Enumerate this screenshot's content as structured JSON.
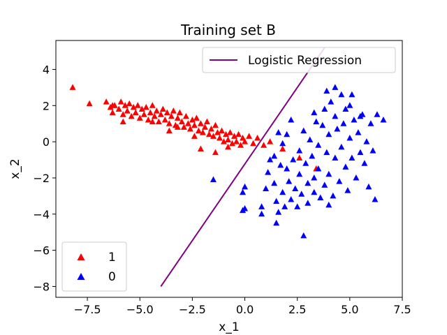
{
  "chart_data": {
    "type": "scatter",
    "title": "Training set B",
    "xlabel": "x_1",
    "ylabel": "x_2",
    "xlim": [
      -9.0,
      7.5
    ],
    "ylim": [
      -8.6,
      5.6
    ],
    "xticks": [
      -7.5,
      -5.0,
      -2.5,
      0.0,
      2.5,
      5.0,
      7.5
    ],
    "xtick_labels": [
      "−7.5",
      "−5.0",
      "−2.5",
      "0.0",
      "2.5",
      "5.0",
      "7.5"
    ],
    "yticks": [
      -8,
      -6,
      -4,
      -2,
      0,
      2,
      4
    ],
    "ytick_labels": [
      "−8",
      "−6",
      "−4",
      "−2",
      "0",
      "2",
      "4"
    ],
    "grid": false,
    "line": {
      "name": "Logistic Regression",
      "color": "#800080",
      "x": [
        -4.0,
        3.8
      ],
      "y": [
        -8.0,
        5.2
      ]
    },
    "series": [
      {
        "name": "1",
        "color": "#ff0000",
        "marker": "triangle",
        "points": [
          [
            -8.2,
            3.0
          ],
          [
            -7.4,
            2.1
          ],
          [
            -6.6,
            2.2
          ],
          [
            -6.4,
            1.9
          ],
          [
            -6.3,
            1.6
          ],
          [
            -6.2,
            2.0
          ],
          [
            -6.0,
            1.8
          ],
          [
            -5.9,
            2.2
          ],
          [
            -5.8,
            1.5
          ],
          [
            -5.7,
            2.0
          ],
          [
            -5.6,
            1.7
          ],
          [
            -5.5,
            2.1
          ],
          [
            -5.4,
            1.4
          ],
          [
            -5.3,
            1.9
          ],
          [
            -5.2,
            1.6
          ],
          [
            -5.1,
            2.0
          ],
          [
            -5.0,
            1.3
          ],
          [
            -4.9,
            1.8
          ],
          [
            -4.8,
            1.5
          ],
          [
            -4.7,
            1.9
          ],
          [
            -4.6,
            1.2
          ],
          [
            -4.5,
            1.6
          ],
          [
            -4.4,
            2.0
          ],
          [
            -4.3,
            1.4
          ],
          [
            -4.2,
            1.7
          ],
          [
            -4.1,
            1.1
          ],
          [
            -4.0,
            1.5
          ],
          [
            -3.9,
            1.8
          ],
          [
            -3.8,
            1.2
          ],
          [
            -3.7,
            1.6
          ],
          [
            -3.6,
            1.0
          ],
          [
            -3.5,
            1.4
          ],
          [
            -3.4,
            1.7
          ],
          [
            -3.3,
            0.9
          ],
          [
            -3.2,
            1.3
          ],
          [
            -3.1,
            1.6
          ],
          [
            -3.0,
            1.1
          ],
          [
            -2.9,
            0.8
          ],
          [
            -2.8,
            1.4
          ],
          [
            -2.7,
            1.0
          ],
          [
            -2.6,
            0.7
          ],
          [
            -2.5,
            1.2
          ],
          [
            -2.4,
            0.9
          ],
          [
            -2.3,
            1.3
          ],
          [
            -2.2,
            0.6
          ],
          [
            -2.1,
            1.0
          ],
          [
            -2.0,
            0.5
          ],
          [
            -1.9,
            0.8
          ],
          [
            -1.8,
            1.1
          ],
          [
            -1.7,
            0.4
          ],
          [
            -1.6,
            0.7
          ],
          [
            -1.5,
            0.3
          ],
          [
            -1.4,
            0.9
          ],
          [
            -1.3,
            0.5
          ],
          [
            -1.2,
            0.2
          ],
          [
            -1.1,
            0.6
          ],
          [
            -1.0,
            0.0
          ],
          [
            -0.9,
            0.4
          ],
          [
            -0.8,
            0.1
          ],
          [
            -0.7,
            0.5
          ],
          [
            -0.6,
            -0.1
          ],
          [
            -0.5,
            0.3
          ],
          [
            -0.4,
            0.0
          ],
          [
            -0.3,
            0.4
          ],
          [
            -0.2,
            -0.2
          ],
          [
            -0.1,
            0.2
          ],
          [
            0.0,
            0.0
          ],
          [
            0.2,
            0.3
          ],
          [
            0.4,
            -0.1
          ],
          [
            0.6,
            0.2
          ],
          [
            0.9,
            -0.2
          ],
          [
            1.2,
            0.0
          ],
          [
            -2.1,
            -0.4
          ],
          [
            -1.4,
            -0.6
          ],
          [
            -0.8,
            -0.3
          ],
          [
            -3.6,
            0.6
          ],
          [
            -4.4,
            1.1
          ],
          [
            -5.8,
            1.1
          ],
          [
            1.8,
            -0.4
          ],
          [
            2.6,
            -0.9
          ],
          [
            3.4,
            -1.5
          ],
          [
            -6.3,
            2.0
          ],
          [
            -3.2,
            0.8
          ],
          [
            -2.4,
            0.3
          ]
        ]
      },
      {
        "name": "0",
        "color": "#0000ff",
        "marker": "triangle",
        "points": [
          [
            -1.5,
            -2.1
          ],
          [
            0.0,
            -2.5
          ],
          [
            -0.1,
            -2.8
          ],
          [
            0.0,
            -3.7
          ],
          [
            -0.1,
            -3.8
          ],
          [
            0.8,
            -3.6
          ],
          [
            0.8,
            -4.0
          ],
          [
            1.0,
            -2.6
          ],
          [
            1.1,
            -1.7
          ],
          [
            1.2,
            -1.0
          ],
          [
            1.4,
            -0.8
          ],
          [
            1.4,
            -2.3
          ],
          [
            1.5,
            -3.3
          ],
          [
            1.5,
            -4.5
          ],
          [
            1.6,
            -3.9
          ],
          [
            1.7,
            -1.3
          ],
          [
            1.8,
            -0.1
          ],
          [
            1.8,
            -2.8
          ],
          [
            1.9,
            -3.6
          ],
          [
            2.0,
            0.4
          ],
          [
            2.0,
            -1.5
          ],
          [
            2.1,
            -2.2
          ],
          [
            2.2,
            -3.2
          ],
          [
            2.3,
            -1.0
          ],
          [
            2.4,
            -2.6
          ],
          [
            2.5,
            -3.6
          ],
          [
            2.6,
            -0.5
          ],
          [
            2.6,
            -1.8
          ],
          [
            2.7,
            -2.9
          ],
          [
            2.8,
            0.6
          ],
          [
            2.9,
            -1.2
          ],
          [
            3.0,
            -2.3
          ],
          [
            3.0,
            -3.4
          ],
          [
            3.1,
            0.1
          ],
          [
            3.2,
            -0.8
          ],
          [
            3.3,
            -2.0
          ],
          [
            3.3,
            -2.8
          ],
          [
            3.4,
            1.1
          ],
          [
            3.5,
            -1.5
          ],
          [
            3.5,
            -0.2
          ],
          [
            3.6,
            -3.1
          ],
          [
            3.7,
            0.9
          ],
          [
            3.8,
            -2.4
          ],
          [
            3.8,
            1.8
          ],
          [
            3.9,
            -0.6
          ],
          [
            4.0,
            0.4
          ],
          [
            4.0,
            -1.8
          ],
          [
            4.1,
            2.2
          ],
          [
            4.2,
            -3.0
          ],
          [
            4.3,
            1.4
          ],
          [
            4.3,
            -0.9
          ],
          [
            4.4,
            0.7
          ],
          [
            4.5,
            -2.2
          ],
          [
            4.6,
            2.6
          ],
          [
            4.6,
            -0.3
          ],
          [
            4.7,
            1.0
          ],
          [
            4.8,
            -1.4
          ],
          [
            4.9,
            -2.7
          ],
          [
            5.0,
            0.2
          ],
          [
            5.0,
            2.0
          ],
          [
            5.1,
            -0.9
          ],
          [
            5.2,
            1.2
          ],
          [
            5.3,
            -2.0
          ],
          [
            5.4,
            0.5
          ],
          [
            5.5,
            -0.6
          ],
          [
            5.6,
            1.5
          ],
          [
            5.7,
            -1.2
          ],
          [
            5.8,
            0.0
          ],
          [
            5.9,
            -2.5
          ],
          [
            6.0,
            1.0
          ],
          [
            6.1,
            -0.5
          ],
          [
            6.2,
            -3.2
          ],
          [
            6.3,
            1.5
          ],
          [
            6.6,
            1.2
          ],
          [
            3.9,
            2.8
          ],
          [
            4.3,
            3.0
          ],
          [
            5.1,
            2.6
          ],
          [
            2.8,
            -5.2
          ],
          [
            4.0,
            -3.5
          ],
          [
            3.3,
            1.6
          ],
          [
            2.2,
            1.2
          ],
          [
            1.6,
            0.5
          ],
          [
            4.8,
            1.8
          ],
          [
            5.5,
            1.4
          ]
        ]
      }
    ],
    "legend_upper": {
      "placement": "upper-right",
      "entries": [
        "Logistic Regression"
      ]
    },
    "legend_lower": {
      "placement": "lower-left",
      "entries": [
        "1",
        "0"
      ]
    }
  }
}
